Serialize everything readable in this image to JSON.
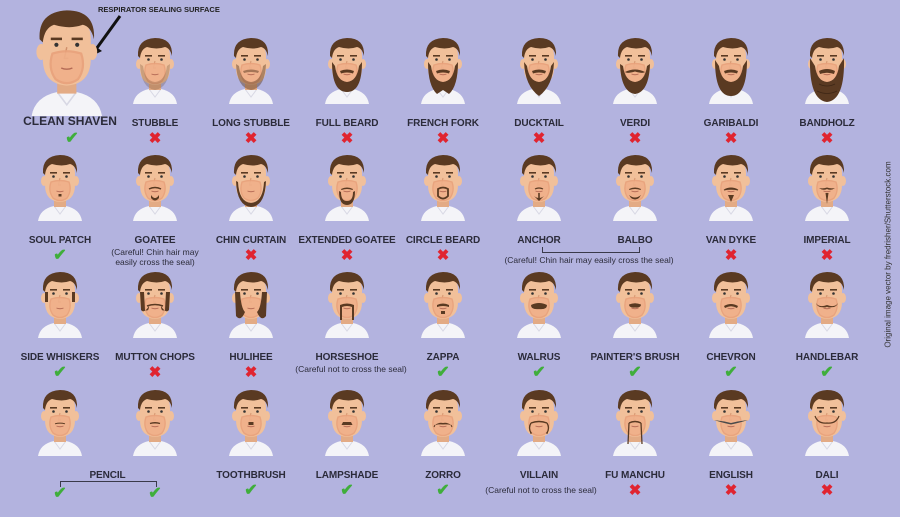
{
  "clean_shaven": {
    "label": "CLEAN SHAVEN",
    "callout": "RESPIRATOR SEALING SURFACE",
    "ok": true
  },
  "credit": "Original image vector by fredrisher/Shutterstock.com",
  "colors": {
    "background": "#b3b3df",
    "check": "#3fae3b",
    "cross": "#e02430",
    "skin": "#f1c09a",
    "hair": "#5a3a22",
    "seal": "#e9a27c"
  },
  "rows": [
    [
      {
        "label": "STUBBLE",
        "ok": false,
        "style": "stubble"
      },
      {
        "label": "LONG STUBBLE",
        "ok": false,
        "style": "longstubble"
      },
      {
        "label": "FULL BEARD",
        "ok": false,
        "style": "fullbeard"
      },
      {
        "label": "FRENCH FORK",
        "ok": false,
        "style": "frenchfork"
      },
      {
        "label": "DUCKTAIL",
        "ok": false,
        "style": "ducktail"
      },
      {
        "label": "VERDI",
        "ok": false,
        "style": "verdi"
      },
      {
        "label": "GARIBALDI",
        "ok": false,
        "style": "garibaldi"
      },
      {
        "label": "BANDHOLZ",
        "ok": false,
        "style": "bandholz"
      }
    ],
    [
      {
        "label": "SOUL PATCH",
        "ok": true,
        "style": "soulpatch"
      },
      {
        "label": "GOATEE",
        "ok": null,
        "style": "goatee",
        "note": "(Careful! Chin hair may easily cross the seal)"
      },
      {
        "label": "CHIN CURTAIN",
        "ok": false,
        "style": "chincurtain"
      },
      {
        "label": "EXTENDED GOATEE",
        "ok": false,
        "style": "extgoatee"
      },
      {
        "label": "CIRCLE BEARD",
        "ok": false,
        "style": "circlebeard"
      },
      {
        "label": "ANCHOR",
        "ok": null,
        "style": "anchor"
      },
      {
        "label": "BALBO",
        "ok": null,
        "style": "balbo"
      },
      {
        "label": "VAN DYKE",
        "ok": false,
        "style": "vandyke"
      },
      {
        "label": "IMPERIAL",
        "ok": false,
        "style": "imperial"
      }
    ],
    [
      {
        "label": "SIDE WHISKERS",
        "ok": true,
        "style": "sidewhiskers"
      },
      {
        "label": "MUTTON CHOPS",
        "ok": false,
        "style": "muttonchops"
      },
      {
        "label": "HULIHEE",
        "ok": false,
        "style": "hulihee"
      },
      {
        "label": "HORSESHOE",
        "ok": null,
        "style": "horseshoe",
        "note": "(Careful not to cross the seal)"
      },
      {
        "label": "ZAPPA",
        "ok": true,
        "style": "zappa"
      },
      {
        "label": "WALRUS",
        "ok": true,
        "style": "walrus"
      },
      {
        "label": "PAINTER'S BRUSH",
        "ok": true,
        "style": "painter"
      },
      {
        "label": "CHEVRON",
        "ok": true,
        "style": "chevron"
      },
      {
        "label": "HANDLEBAR",
        "ok": true,
        "style": "handlebar"
      }
    ],
    [
      {
        "label": "",
        "ok": true,
        "style": "pencil1"
      },
      {
        "label": "",
        "ok": true,
        "style": "pencil2"
      },
      {
        "label": "TOOTHBRUSH",
        "ok": true,
        "style": "toothbrush"
      },
      {
        "label": "LAMPSHADE",
        "ok": true,
        "style": "lampshade"
      },
      {
        "label": "ZORRO",
        "ok": true,
        "style": "zorro"
      },
      {
        "label": "VILLAIN",
        "ok": null,
        "style": "villain",
        "note": "(Careful not to cross the seal)"
      },
      {
        "label": "FU MANCHU",
        "ok": false,
        "style": "fumanchu"
      },
      {
        "label": "ENGLISH",
        "ok": false,
        "style": "english"
      },
      {
        "label": "DALI",
        "ok": false,
        "style": "dali"
      }
    ]
  ],
  "groups": {
    "anchor_balbo_note": "(Careful! Chin hair may easily cross the seal)",
    "pencil_label": "PENCIL"
  }
}
